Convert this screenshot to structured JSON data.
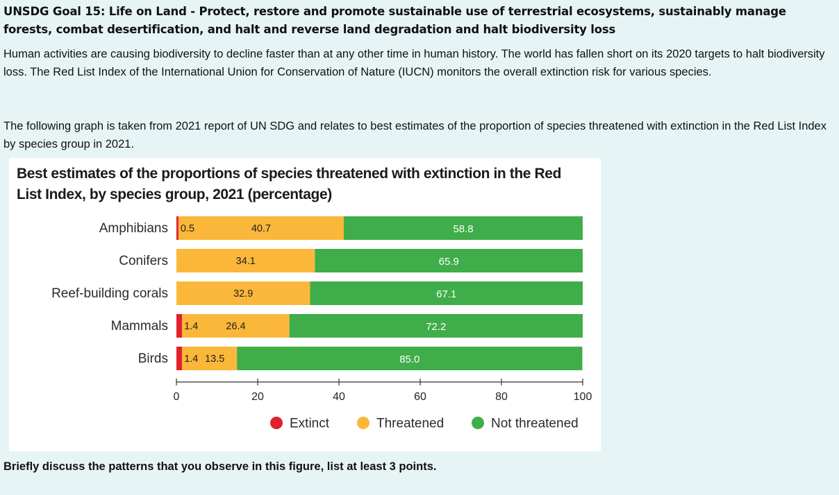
{
  "page": {
    "heading": "UNSDG Goal 15: Life on Land - Protect, restore and promote sustainable use of terrestrial ecosystems, sustainably manage forests, combat desertification, and halt and reverse land degradation and halt biodiversity loss",
    "paragraph_1": "Human activities are causing biodiversity to decline faster than at any other time in human history. The world has fallen short on its 2020 targets to halt biodiversity loss. The Red List Index of the International Union for Conservation of Nature (IUCN) monitors the overall extinction risk for various species.",
    "paragraph_2": "The following graph is taken from 2021 report of UN SDG and relates to best estimates of the proportion of species threatened with extinction in the Red List Index by species group in 2021.",
    "question": "Briefly discuss the patterns that you observe in this figure, list at least 3 points."
  },
  "colors": {
    "extinct": "#e2202c",
    "threatened": "#fbb73a",
    "not_threatened": "#3fad49"
  },
  "chart_data": {
    "type": "bar",
    "orientation": "horizontal",
    "stacked": true,
    "title": "Best estimates of the proportions of species threatened with extinction in the Red List Index, by species group, 2021 (percentage)",
    "categories": [
      "Amphibians",
      "Conifers",
      "Reef-building corals",
      "Mammals",
      "Birds"
    ],
    "series": [
      {
        "name": "Extinct",
        "values": [
          0.5,
          0,
          0,
          1.4,
          1.4
        ],
        "labels": [
          "0.5",
          "",
          "",
          "1.4",
          "1.4"
        ]
      },
      {
        "name": "Threatened",
        "values": [
          40.7,
          34.1,
          32.9,
          26.4,
          13.5
        ],
        "labels": [
          "40.7",
          "34.1",
          "32.9",
          "26.4",
          "13.5"
        ]
      },
      {
        "name": "Not threatened",
        "values": [
          58.8,
          65.9,
          67.1,
          72.2,
          85.0
        ],
        "labels": [
          "58.8",
          "65.9",
          "67.1",
          "72.2",
          "85.0"
        ]
      }
    ],
    "xlim": [
      0,
      100
    ],
    "xticks": [
      0,
      20,
      40,
      60,
      80,
      100
    ],
    "xlabel": "",
    "ylabel": "",
    "legend": [
      "Extinct",
      "Threatened",
      "Not threatened"
    ],
    "legend_position": "bottom-right"
  }
}
